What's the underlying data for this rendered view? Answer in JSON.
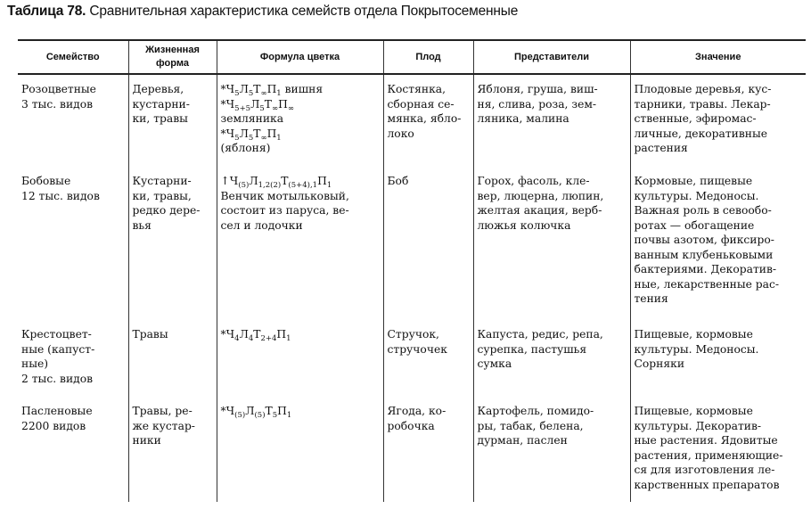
{
  "title": {
    "label": "Таблица 78.",
    "text": " Сравнительная характеристика семейств отдела Покрытосеменные"
  },
  "headers": [
    "Семейство",
    "Жизненная форма",
    "Формула цветка",
    "Плод",
    "Представители",
    "Значение"
  ],
  "rows": [
    {
      "family": [
        "Розоцветные",
        "3 тыс. видов"
      ],
      "life_form": [
        "Деревья,",
        "кустарни-",
        "ки, травы"
      ],
      "formula": [
        [
          [
            "*Ч",
            "5"
          ],
          [
            "Л",
            "5"
          ],
          [
            "Т",
            "∞"
          ],
          [
            "П",
            "1"
          ],
          [
            " вишня",
            ""
          ]
        ],
        [
          [
            "*Ч",
            "5+5"
          ],
          [
            "Л",
            "5"
          ],
          [
            "Т",
            "∞"
          ],
          [
            "П",
            "∞"
          ]
        ],
        [
          [
            "земляника",
            ""
          ]
        ],
        [
          [
            "*Ч",
            "5"
          ],
          [
            "Л",
            "5"
          ],
          [
            "Т",
            "∞"
          ],
          [
            "П",
            "1"
          ]
        ],
        [
          [
            "(яблоня)",
            ""
          ]
        ]
      ],
      "fruit": [
        "Костянка,",
        "сборная се-",
        "мянка, ябло-",
        "локо"
      ],
      "representatives": [
        "Яблоня, груша, виш-",
        "ня, слива, роза, зем-",
        "ляника, малина"
      ],
      "significance": [
        "Плодовые деревья, кус-",
        "тарники, травы. Лекар-",
        "ственные, эфиромас-",
        "личные, декоративные",
        "растения"
      ]
    },
    {
      "family": [
        "Бобовые",
        "12 тыс. видов"
      ],
      "life_form": [
        "Кустарни-",
        "ки, травы,",
        "редко дере-",
        "вья"
      ],
      "formula": [
        [
          [
            "↑Ч",
            "(5)"
          ],
          [
            "Л",
            "1,2(2)"
          ],
          [
            "Т",
            "(5+4),1"
          ],
          [
            "П",
            "1"
          ]
        ],
        [
          [
            "Венчик мотыльковый,",
            ""
          ]
        ],
        [
          [
            "состоит из паруса, ве-",
            ""
          ]
        ],
        [
          [
            "сел и лодочки",
            ""
          ]
        ]
      ],
      "fruit": [
        "Боб"
      ],
      "representatives": [
        "Горох, фасоль, кле-",
        "вер, люцерна, люпин,",
        "желтая акация, верб-",
        "люжья колючка"
      ],
      "significance": [
        "Кормовые, пищевые",
        "культуры. Медоносы.",
        "Важная роль в севообо-",
        "ротах — обогащение",
        "почвы азотом, фиксиро-",
        "ванным клубеньковыми",
        "бактериями. Декоратив-",
        "ные, лекарственные рас-",
        "тения"
      ]
    },
    {
      "family": [
        "Крестоцвет-",
        "ные (капуст-",
        "ные)",
        "2 тыс. видов"
      ],
      "life_form": [
        "Травы"
      ],
      "formula": [
        [
          [
            "*Ч",
            "4"
          ],
          [
            "Л",
            "4"
          ],
          [
            "Т",
            "2+4"
          ],
          [
            "П",
            "1"
          ]
        ]
      ],
      "fruit": [
        "Стручок,",
        "стручочек"
      ],
      "representatives": [
        "Капуста, редис, репа,",
        "сурепка, пастушья",
        "сумка"
      ],
      "significance": [
        "Пищевые, кормовые",
        "культуры. Медоносы.",
        "Сорняки"
      ]
    },
    {
      "family": [
        "Пасленовые",
        "2200 видов"
      ],
      "life_form": [
        "Травы, ре-",
        "же кустар-",
        "ники"
      ],
      "formula": [
        [
          [
            "*Ч",
            "(5)"
          ],
          [
            "Л",
            "(5)"
          ],
          [
            "Т",
            "5"
          ],
          [
            "П",
            "1"
          ]
        ]
      ],
      "fruit": [
        "Ягода, ко-",
        "робочка"
      ],
      "representatives": [
        "Картофель, помидо-",
        "ры, табак, белена,",
        "дурман, паслен"
      ],
      "significance": [
        "Пищевые, кормовые",
        "культуры. Декоратив-",
        "ные растения. Ядовитые",
        "растения, применяющие-",
        "ся для изготовления ле-",
        "карственных препаратов"
      ]
    }
  ]
}
